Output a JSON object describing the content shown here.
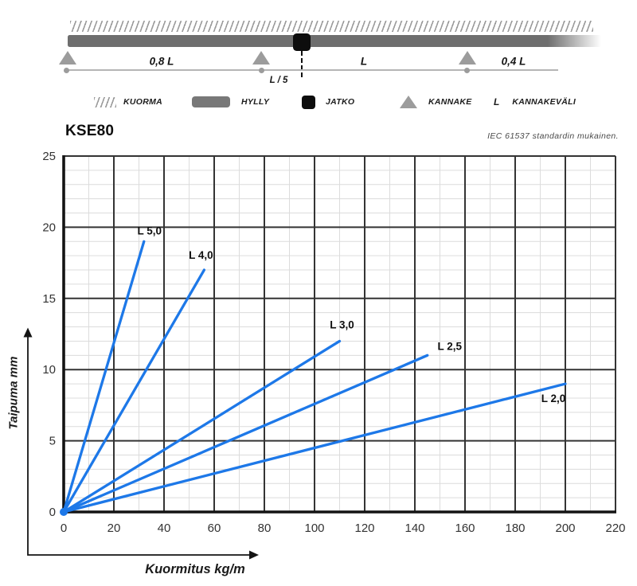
{
  "diagram": {
    "span1_label": "0,8 L",
    "span2_label": "L",
    "span3_label": "0,4 L",
    "joint_offset_label": "L / 5",
    "legend": [
      {
        "icon": "hatch-load",
        "label": "KUORMA"
      },
      {
        "icon": "shelf-bar",
        "label": "HYLLY"
      },
      {
        "icon": "joint-square",
        "label": "JATKO"
      },
      {
        "icon": "support-triangle",
        "label": "KANNAKE"
      },
      {
        "icon": "letter-L",
        "icon_text": "L",
        "label": "KANNAKEVÄLI"
      }
    ]
  },
  "chart": {
    "title": "KSE80",
    "standard_note": "IEC 61537 standardin mukainen."
  },
  "chart_data": {
    "type": "line",
    "title": "KSE80",
    "xlabel": "Kuormitus kg/m",
    "ylabel": "Taipuma mm",
    "xlim": [
      0,
      220
    ],
    "ylim": [
      0,
      25
    ],
    "x_ticks": [
      0,
      20,
      40,
      60,
      80,
      100,
      120,
      140,
      160,
      180,
      200,
      220
    ],
    "y_ticks": [
      0,
      5,
      10,
      15,
      20,
      25
    ],
    "x_minor_step": 10,
    "y_minor_step": 1,
    "grid": true,
    "legend_position": "inline-labels",
    "line_color": "#1d78e8",
    "origin_marker": true,
    "series": [
      {
        "name": "L 5,0",
        "x": [
          0,
          32
        ],
        "y": [
          0,
          19
        ]
      },
      {
        "name": "L 4,0",
        "x": [
          0,
          56
        ],
        "y": [
          0,
          17
        ]
      },
      {
        "name": "L 3,0",
        "x": [
          0,
          110
        ],
        "y": [
          0,
          12
        ]
      },
      {
        "name": "L 2,5",
        "x": [
          0,
          145
        ],
        "y": [
          0,
          11
        ]
      },
      {
        "name": "L 2,0",
        "x": [
          0,
          200
        ],
        "y": [
          0,
          9
        ]
      }
    ]
  }
}
